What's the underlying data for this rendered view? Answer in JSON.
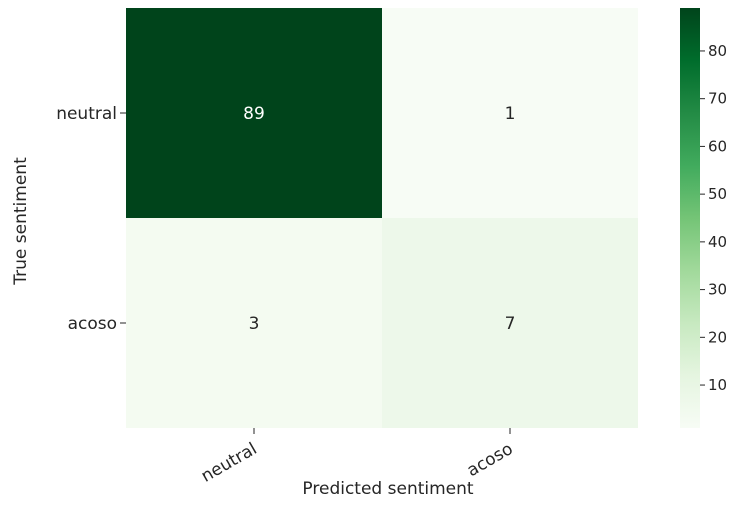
{
  "chart_data": {
    "type": "heatmap",
    "title": "",
    "xlabel": "Predicted sentiment",
    "ylabel": "True sentiment",
    "x_categories": [
      "neutral",
      "acoso"
    ],
    "y_categories": [
      "neutral",
      "acoso"
    ],
    "values": [
      [
        89,
        1
      ],
      [
        3,
        7
      ]
    ],
    "colormap": "Greens",
    "colorbar": {
      "min": 1,
      "max": 89,
      "ticks": [
        10,
        20,
        30,
        40,
        50,
        60,
        70,
        80
      ],
      "tick_labels": [
        "10",
        "20",
        "30",
        "40",
        "50",
        "60",
        "70",
        "80"
      ]
    },
    "grid": false,
    "colors": {
      "low": "#f7fcf5",
      "high": "#00441b",
      "text_dark": "#262626",
      "text_light": "#ffffff"
    }
  }
}
